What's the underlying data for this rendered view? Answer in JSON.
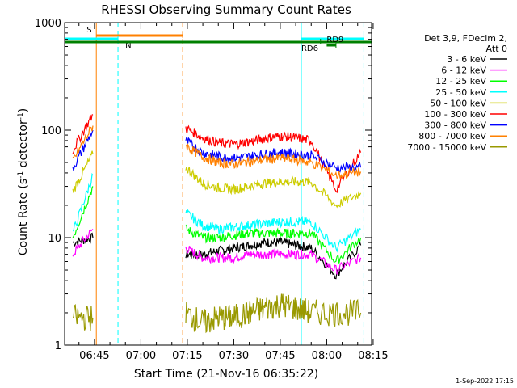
{
  "chart_data": {
    "type": "line",
    "title": "RHESSI Observing Summary Count Rates",
    "xlabel": "Start Time (21-Nov-16 06:35:22)",
    "ylabel_parts": [
      "Count Rate (s",
      "-1",
      " detector",
      "-1",
      ")"
    ],
    "y_scale": "log",
    "ylim": [
      1,
      1000
    ],
    "xlim_minutes": [
      35.37,
      134.5
    ],
    "x_ticks": [
      {
        "m": 45,
        "label": "06:45"
      },
      {
        "m": 60,
        "label": "07:00"
      },
      {
        "m": 75,
        "label": "07:15"
      },
      {
        "m": 90,
        "label": "07:30"
      },
      {
        "m": 105,
        "label": "07:45"
      },
      {
        "m": 120,
        "label": "08:00"
      },
      {
        "m": 135,
        "label": "08:15"
      }
    ],
    "y_ticks": [
      {
        "v": 1,
        "label": "1"
      },
      {
        "v": 10,
        "label": "10"
      },
      {
        "v": 100,
        "label": "100"
      },
      {
        "v": 1000,
        "label": "1000"
      }
    ],
    "legend_header": [
      "Det 3,9, FDecim 2,",
      "Att 0"
    ],
    "series": [
      {
        "name": "3 - 6 keV",
        "color": "#000000",
        "values": [
          9,
          10,
          null,
          7,
          7,
          7.5,
          8,
          8.5,
          9,
          9,
          8.5,
          8,
          4.5,
          8.5
        ]
      },
      {
        "name": "6 - 12 keV",
        "color": "#ff00ff",
        "values": [
          7,
          12,
          null,
          8,
          6.5,
          6.5,
          6.5,
          7,
          7,
          7,
          7,
          7,
          5,
          6.5
        ]
      },
      {
        "name": "12 - 25 keV",
        "color": "#00ff00",
        "values": [
          10,
          30,
          null,
          12,
          10,
          10,
          10.5,
          11,
          11,
          11,
          11,
          11,
          6,
          10
        ]
      },
      {
        "name": "25 - 50 keV",
        "color": "#00ffff",
        "values": [
          11,
          38,
          null,
          17,
          13,
          12,
          12.5,
          13,
          13.5,
          14,
          14,
          14,
          8,
          12
        ]
      },
      {
        "name": "50 - 100 keV",
        "color": "#cccc00",
        "values": [
          27,
          60,
          null,
          45,
          32,
          29,
          28,
          30,
          32,
          33,
          33,
          33,
          20,
          26
        ]
      },
      {
        "name": "100 - 300 keV",
        "color": "#ff0000",
        "values": [
          65,
          140,
          null,
          105,
          85,
          76,
          74,
          78,
          84,
          88,
          85,
          80,
          28,
          62
        ]
      },
      {
        "name": "300 - 800 keV",
        "color": "#0000ff",
        "values": [
          44,
          100,
          null,
          80,
          62,
          57,
          55,
          57,
          60,
          62,
          60,
          58,
          45,
          45
        ]
      },
      {
        "name": "800 - 7000 keV",
        "color": "#ff8000",
        "values": [
          52,
          110,
          null,
          72,
          56,
          50,
          48,
          51,
          53,
          55,
          53,
          50,
          38,
          41
        ]
      },
      {
        "name": "7000 - 15000 keV",
        "color": "#999900",
        "values": [
          1.8,
          1.8,
          null,
          2,
          1.6,
          1.8,
          1.8,
          2,
          2.2,
          2.4,
          2.2,
          2,
          2,
          2
        ]
      }
    ],
    "x_minutes": [
      38,
      44.5,
      60,
      74.5,
      80,
      85,
      90,
      95,
      100,
      105,
      110,
      115,
      123,
      131
    ],
    "vertical_markers": [
      {
        "m": 35.5,
        "color": "#00ffff",
        "style": "solid"
      },
      {
        "m": 45.6,
        "color": "#ff8000",
        "style": "solid"
      },
      {
        "m": 52.6,
        "color": "#00ffff",
        "style": "dashed"
      },
      {
        "m": 73.5,
        "color": "#ff8000",
        "style": "dashed"
      },
      {
        "m": 111.8,
        "color": "#00ffff",
        "style": "solid"
      },
      {
        "m": 132,
        "color": "#00ffff",
        "style": "dashed"
      }
    ],
    "flag_bars": [
      {
        "label": "S",
        "color": "#ff8000",
        "from": 45.6,
        "to": 73.5,
        "y": 1.0
      },
      {
        "label": "N",
        "color": "#00ffff",
        "from": 35.4,
        "to": 52.6,
        "y": 2.0
      },
      {
        "label": "",
        "color": "#00ffff",
        "from": 111.8,
        "to": 132,
        "y": 2.0
      },
      {
        "label": "",
        "color": "#008000",
        "from": 35.4,
        "to": 134.5,
        "y": 3.0
      },
      {
        "label": "RD9",
        "color": "#008000",
        "from": 120,
        "to": 123,
        "y": 4.0
      },
      {
        "label": "RD6",
        "color": "#008000",
        "from": 111.8,
        "to": 118,
        "y": 3.0
      }
    ],
    "grid": false,
    "legend_placement": "right"
  },
  "footer_date": "1-Sep-2022 17:15"
}
